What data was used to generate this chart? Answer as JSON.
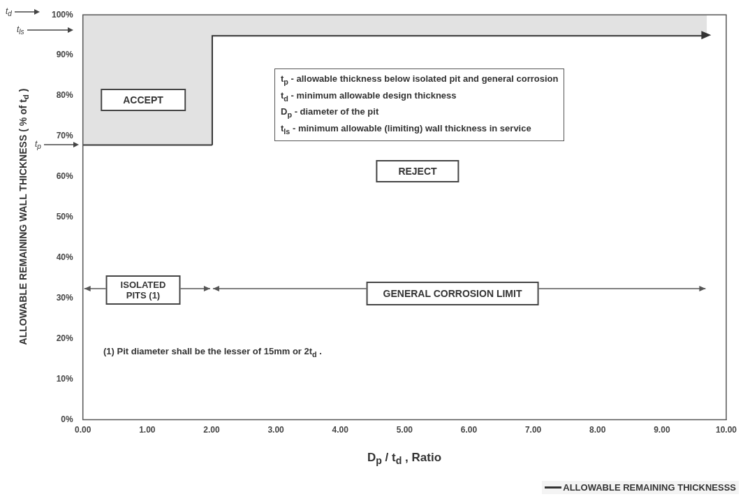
{
  "chart_data": {
    "type": "line",
    "xlabel": "D$_{p}$ / t$_{d}$ , Ratio",
    "ylabel": "ALLOWABLE REMAINING WALL THICKNESS ( % of t$_{d}$ )",
    "x": [
      0,
      2,
      2,
      9.7
    ],
    "series": [
      {
        "name": "ALLOWABLE REMAINING THICKNESSS",
        "color": "#333333",
        "values": [
          68,
          68,
          95,
          95
        ],
        "lower": [
          68,
          68,
          95,
          95
        ],
        "upper": [
          100,
          100,
          100,
          100
        ]
      }
    ],
    "xlim": [
      0,
      10
    ],
    "xticks": [
      {
        "value": 0,
        "label": "0.00"
      },
      {
        "value": 1,
        "label": "1.00"
      },
      {
        "value": 2,
        "label": "2.00"
      },
      {
        "value": 3,
        "label": "3.00"
      },
      {
        "value": 4,
        "label": "4.00"
      },
      {
        "value": 5,
        "label": "5.00"
      },
      {
        "value": 6,
        "label": "6.00"
      },
      {
        "value": 7,
        "label": "7.00"
      },
      {
        "value": 8,
        "label": "8.00"
      },
      {
        "value": 9,
        "label": "9.00"
      },
      {
        "value": 10,
        "label": "10.00"
      }
    ],
    "ylim": [
      0,
      100
    ],
    "yticks": [
      {
        "value": 0,
        "label": "0%"
      },
      {
        "value": 10,
        "label": "10%"
      },
      {
        "value": 20,
        "label": "20%"
      },
      {
        "value": 30,
        "label": "30%"
      },
      {
        "value": 40,
        "label": "40%"
      },
      {
        "value": 50,
        "label": "50%"
      },
      {
        "value": 60,
        "label": "60%"
      },
      {
        "value": 70,
        "label": "70%"
      },
      {
        "value": 80,
        "label": "80%"
      },
      {
        "value": 90,
        "label": "90%"
      },
      {
        "value": 100,
        "label": "100%"
      }
    ],
    "annotations": [
      "t$_{d}$",
      "t$_{ls}$",
      "t$_{p}$",
      "ACCEPT",
      "REJECT",
      "t$_{p}$ - allowable thickness below isolated pit and general corrosion",
      "t$_{d}$ - minimum allowable design thickness",
      "D$_{p}$ - diameter of the pit",
      "t$_{ls}$ - minimum allowable (limiting) wall thickness in service",
      "ISOLATED PITS (1)",
      "GENERAL CORROSION LIMIT",
      "(1) Pit diameter shall be the lesser of 15mm or 2t$_{d}$ ."
    ],
    "grid": false,
    "legend": "bottom right",
    "marker": "none",
    "line_style": "solid"
  }
}
